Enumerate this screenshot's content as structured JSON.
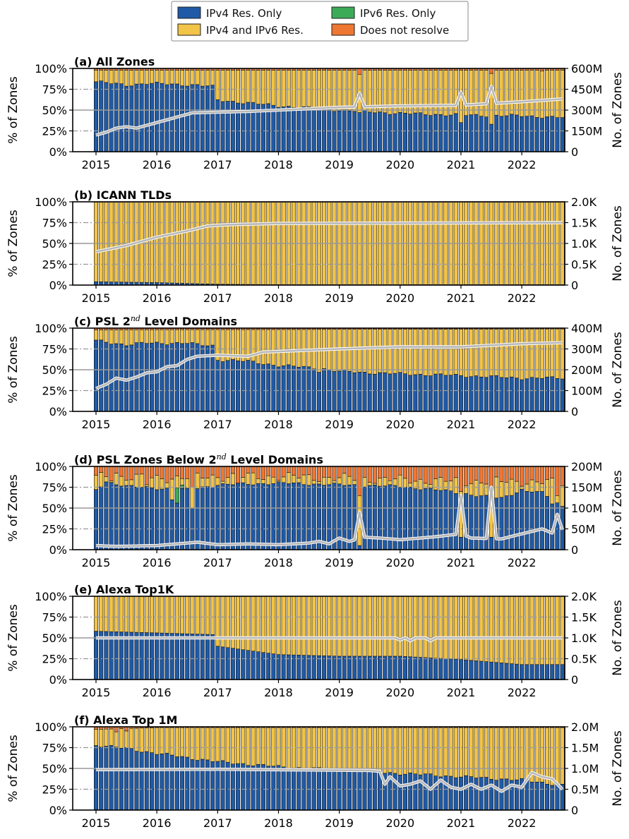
{
  "legend": {
    "items": [
      {
        "label": "IPv4 Res. Only",
        "color": "#1f5aa6"
      },
      {
        "label": "IPv6 Res. Only",
        "color": "#3cab58"
      },
      {
        "label": "IPv4 and IPv6 Res.",
        "color": "#f2c447"
      },
      {
        "label": "Does not resolve",
        "color": "#ee7733"
      }
    ]
  },
  "colors": {
    "ipv4": "#1f5aa6",
    "ipv6": "#3cab58",
    "both": "#f2c447",
    "none": "#ee7733",
    "count_line": "#b8b8b8",
    "grid": "#999999"
  },
  "x_ticks": [
    "2015",
    "2016",
    "2017",
    "2018",
    "2019",
    "2020",
    "2021",
    "2022"
  ],
  "y_left_ticks": [
    "0%",
    "25%",
    "50%",
    "75%",
    "100%"
  ],
  "y_left_label": "% of Zones",
  "y_right_label": "No. of Zones",
  "chart_data": [
    {
      "type": "bar",
      "title": "(a) All Zones",
      "title_main": "(a) All Zones",
      "title_sup": "",
      "title_tail": "",
      "x_start": "2015-01",
      "months": 93,
      "stacked_order": [
        "IPv4 Res. Only",
        "IPv6 Res. Only",
        "IPv4 and IPv6 Res.",
        "Does not resolve"
      ],
      "ylim": [
        0,
        100
      ],
      "right_ticks": [
        "0",
        "150M",
        "300M",
        "450M",
        "600M"
      ],
      "right_ylim": [
        0,
        600
      ],
      "right_unit": "M",
      "ipv4_keys": [
        [
          0,
          84
        ],
        [
          6,
          80
        ],
        [
          10,
          82
        ],
        [
          20,
          80
        ],
        [
          23,
          78
        ],
        [
          24,
          62
        ],
        [
          36,
          55
        ],
        [
          48,
          50
        ],
        [
          60,
          46
        ],
        [
          72,
          44
        ],
        [
          84,
          43
        ],
        [
          92,
          41
        ]
      ],
      "ipv4_spikes": {
        "52": 47,
        "72": 35,
        "78": 33
      },
      "none_keys": [
        [
          0,
          2
        ],
        [
          92,
          2
        ]
      ],
      "none_spikes": {
        "52": 7,
        "78": 6,
        "88": 3
      },
      "count_keys": [
        [
          0,
          120
        ],
        [
          2,
          140
        ],
        [
          4,
          170
        ],
        [
          6,
          180
        ],
        [
          8,
          170
        ],
        [
          10,
          190
        ],
        [
          12,
          210
        ],
        [
          14,
          230
        ],
        [
          16,
          250
        ],
        [
          19,
          280
        ],
        [
          24,
          285
        ],
        [
          30,
          290
        ],
        [
          36,
          300
        ],
        [
          48,
          320
        ],
        [
          60,
          330
        ],
        [
          72,
          335
        ],
        [
          84,
          360
        ],
        [
          92,
          380
        ]
      ],
      "count_spikes": {
        "52": 420,
        "72": 430,
        "78": 470
      }
    },
    {
      "type": "bar",
      "title": "(b) ICANN TLDs",
      "title_main": "(b) ICANN TLDs",
      "title_sup": "",
      "title_tail": "",
      "x_start": "2015-01",
      "months": 93,
      "stacked_order": [
        "IPv4 Res. Only",
        "IPv6 Res. Only",
        "IPv4 and IPv6 Res.",
        "Does not resolve"
      ],
      "ylim": [
        0,
        100
      ],
      "right_ticks": [
        "0",
        "0.5K",
        "1.0K",
        "1.5K",
        "2.0K"
      ],
      "right_ylim": [
        0,
        2.0
      ],
      "right_unit": "K",
      "ipv4_keys": [
        [
          0,
          4
        ],
        [
          12,
          3
        ],
        [
          24,
          1
        ],
        [
          36,
          0.5
        ],
        [
          92,
          0.5
        ]
      ],
      "ipv4_spikes": {},
      "none_keys": [
        [
          0,
          0.3
        ],
        [
          92,
          0.3
        ]
      ],
      "none_spikes": {},
      "count_keys": [
        [
          0,
          0.8
        ],
        [
          6,
          0.95
        ],
        [
          12,
          1.15
        ],
        [
          18,
          1.3
        ],
        [
          22,
          1.42
        ],
        [
          26,
          1.45
        ],
        [
          36,
          1.48
        ],
        [
          92,
          1.5
        ]
      ],
      "count_spikes": {}
    },
    {
      "type": "bar",
      "title": "(c) PSL 2nd Level Domains",
      "title_main": "(c) PSL 2",
      "title_sup": "nd",
      "title_tail": " Level Domains",
      "x_start": "2015-01",
      "months": 93,
      "stacked_order": [
        "IPv4 Res. Only",
        "IPv6 Res. Only",
        "IPv4 and IPv6 Res.",
        "Does not resolve"
      ],
      "ylim": [
        0,
        100
      ],
      "right_ticks": [
        "0",
        "100M",
        "200M",
        "300M",
        "400M"
      ],
      "right_ylim": [
        0,
        400
      ],
      "right_unit": "M",
      "ipv4_keys": [
        [
          0,
          85
        ],
        [
          6,
          80
        ],
        [
          10,
          82
        ],
        [
          18,
          82
        ],
        [
          20,
          80
        ],
        [
          23,
          79
        ],
        [
          24,
          62
        ],
        [
          30,
          60
        ],
        [
          36,
          55
        ],
        [
          44,
          52
        ],
        [
          48,
          48
        ],
        [
          60,
          45
        ],
        [
          72,
          43
        ],
        [
          84,
          40
        ],
        [
          92,
          40
        ]
      ],
      "ipv4_spikes": {
        "44": 47
      },
      "none_keys": [
        [
          0,
          2
        ],
        [
          92,
          1
        ]
      ],
      "none_spikes": {},
      "count_keys": [
        [
          0,
          110
        ],
        [
          2,
          130
        ],
        [
          4,
          160
        ],
        [
          6,
          150
        ],
        [
          8,
          165
        ],
        [
          10,
          185
        ],
        [
          12,
          190
        ],
        [
          14,
          215
        ],
        [
          16,
          220
        ],
        [
          18,
          250
        ],
        [
          20,
          265
        ],
        [
          24,
          270
        ],
        [
          30,
          265
        ],
        [
          33,
          285
        ],
        [
          38,
          290
        ],
        [
          48,
          300
        ],
        [
          60,
          310
        ],
        [
          72,
          310
        ],
        [
          84,
          325
        ],
        [
          92,
          330
        ]
      ],
      "count_spikes": {}
    },
    {
      "type": "bar",
      "title": "(d) PSL Zones Below 2nd Level Domains",
      "title_main": "(d) PSL Zones Below 2",
      "title_sup": "nd",
      "title_tail": " Level Domains",
      "x_start": "2015-01",
      "months": 93,
      "stacked_order": [
        "IPv4 Res. Only",
        "IPv6 Res. Only",
        "IPv4 and IPv6 Res.",
        "Does not resolve"
      ],
      "ylim": [
        0,
        100
      ],
      "right_ticks": [
        "0",
        "50M",
        "100M",
        "150M",
        "200M"
      ],
      "right_ylim": [
        0,
        200
      ],
      "right_unit": "M",
      "ipv4_keys": [
        [
          0,
          72
        ],
        [
          2,
          82
        ],
        [
          6,
          76
        ],
        [
          12,
          74
        ],
        [
          18,
          72
        ],
        [
          24,
          78
        ],
        [
          36,
          80
        ],
        [
          48,
          78
        ],
        [
          60,
          76
        ],
        [
          70,
          70
        ],
        [
          76,
          64
        ],
        [
          80,
          62
        ],
        [
          84,
          72
        ],
        [
          88,
          68
        ],
        [
          92,
          52
        ]
      ],
      "ipv4_spikes": {
        "15": 60,
        "16": 56,
        "19": 50,
        "52": 5,
        "72": 15,
        "78": 15,
        "85": 70,
        "90": 55
      },
      "none_keys": [
        [
          0,
          12
        ],
        [
          12,
          14
        ],
        [
          24,
          12
        ],
        [
          36,
          12
        ],
        [
          48,
          14
        ],
        [
          60,
          16
        ],
        [
          72,
          18
        ],
        [
          84,
          18
        ],
        [
          92,
          20
        ]
      ],
      "none_spikes": {
        "4": 8,
        "10": 22,
        "19": 25,
        "28": 20,
        "52": 35,
        "72": 30,
        "78": 28,
        "91": 35
      },
      "ipv6_spikes": {
        "16": 18,
        "17": 4
      },
      "count_keys": [
        [
          0,
          10
        ],
        [
          4,
          8
        ],
        [
          12,
          10
        ],
        [
          20,
          18
        ],
        [
          24,
          12
        ],
        [
          30,
          14
        ],
        [
          36,
          12
        ],
        [
          42,
          16
        ],
        [
          44,
          20
        ],
        [
          46,
          14
        ],
        [
          48,
          28
        ],
        [
          50,
          20
        ],
        [
          53,
          30
        ],
        [
          56,
          28
        ],
        [
          60,
          24
        ],
        [
          66,
          30
        ],
        [
          72,
          38
        ],
        [
          74,
          28
        ],
        [
          80,
          26
        ],
        [
          84,
          38
        ],
        [
          88,
          50
        ],
        [
          90,
          40
        ],
        [
          92,
          48
        ]
      ],
      "count_spikes": {
        "52": 90,
        "72": 130,
        "78": 150,
        "91": 85
      }
    },
    {
      "type": "bar",
      "title": "(e) Alexa Top1K",
      "title_main": "(e) Alexa Top1K",
      "title_sup": "",
      "title_tail": "",
      "x_start": "2015-01",
      "months": 93,
      "stacked_order": [
        "IPv4 Res. Only",
        "IPv6 Res. Only",
        "IPv4 and IPv6 Res.",
        "Does not resolve"
      ],
      "ylim": [
        0,
        100
      ],
      "right_ticks": [
        "0",
        "0.5K",
        "1.0K",
        "1.5K",
        "2.0K"
      ],
      "right_ylim": [
        0,
        2.0
      ],
      "right_unit": "K",
      "ipv4_keys": [
        [
          0,
          58
        ],
        [
          12,
          56
        ],
        [
          23,
          54
        ],
        [
          24,
          40
        ],
        [
          36,
          30
        ],
        [
          48,
          28
        ],
        [
          60,
          28
        ],
        [
          72,
          24
        ],
        [
          84,
          18
        ],
        [
          92,
          18
        ]
      ],
      "ipv4_spikes": {},
      "none_keys": [
        [
          0,
          0
        ],
        [
          92,
          0
        ]
      ],
      "none_spikes": {},
      "count_keys": [
        [
          0,
          1.0
        ],
        [
          92,
          1.0
        ]
      ],
      "count_spikes": {
        "60": 0.95,
        "62": 0.93,
        "66": 0.93
      }
    },
    {
      "type": "bar",
      "title": "(f) Alexa Top 1M",
      "title_main": "(f) Alexa Top 1M",
      "title_sup": "",
      "title_tail": "",
      "x_start": "2015-01",
      "months": 93,
      "stacked_order": [
        "IPv4 Res. Only",
        "IPv6 Res. Only",
        "IPv4 and IPv6 Res.",
        "Does not resolve"
      ],
      "ylim": [
        0,
        100
      ],
      "right_ticks": [
        "0",
        "0.5M",
        "1.0M",
        "1.5M",
        "2.0M"
      ],
      "right_ylim": [
        0,
        2.0
      ],
      "right_unit": "M",
      "ipv4_keys": [
        [
          0,
          78
        ],
        [
          6,
          74
        ],
        [
          12,
          68
        ],
        [
          24,
          58
        ],
        [
          36,
          52
        ],
        [
          48,
          48
        ],
        [
          60,
          44
        ],
        [
          72,
          40
        ],
        [
          84,
          36
        ],
        [
          92,
          30
        ]
      ],
      "ipv4_spikes": {},
      "none_keys": [
        [
          0,
          3
        ],
        [
          12,
          1
        ],
        [
          92,
          1
        ]
      ],
      "none_spikes": {
        "4": 6,
        "6": 5
      },
      "count_keys": [
        [
          0,
          0.97
        ],
        [
          24,
          0.98
        ],
        [
          54,
          0.95
        ],
        [
          56,
          0.93
        ],
        [
          57,
          0.62
        ],
        [
          58,
          0.8
        ],
        [
          60,
          0.58
        ],
        [
          62,
          0.62
        ],
        [
          64,
          0.7
        ],
        [
          66,
          0.5
        ],
        [
          68,
          0.72
        ],
        [
          70,
          0.55
        ],
        [
          72,
          0.5
        ],
        [
          74,
          0.62
        ],
        [
          76,
          0.5
        ],
        [
          78,
          0.6
        ],
        [
          80,
          0.45
        ],
        [
          82,
          0.6
        ],
        [
          84,
          0.55
        ],
        [
          86,
          0.9
        ],
        [
          88,
          0.8
        ],
        [
          90,
          0.75
        ],
        [
          92,
          0.5
        ]
      ],
      "count_spikes": {}
    }
  ]
}
